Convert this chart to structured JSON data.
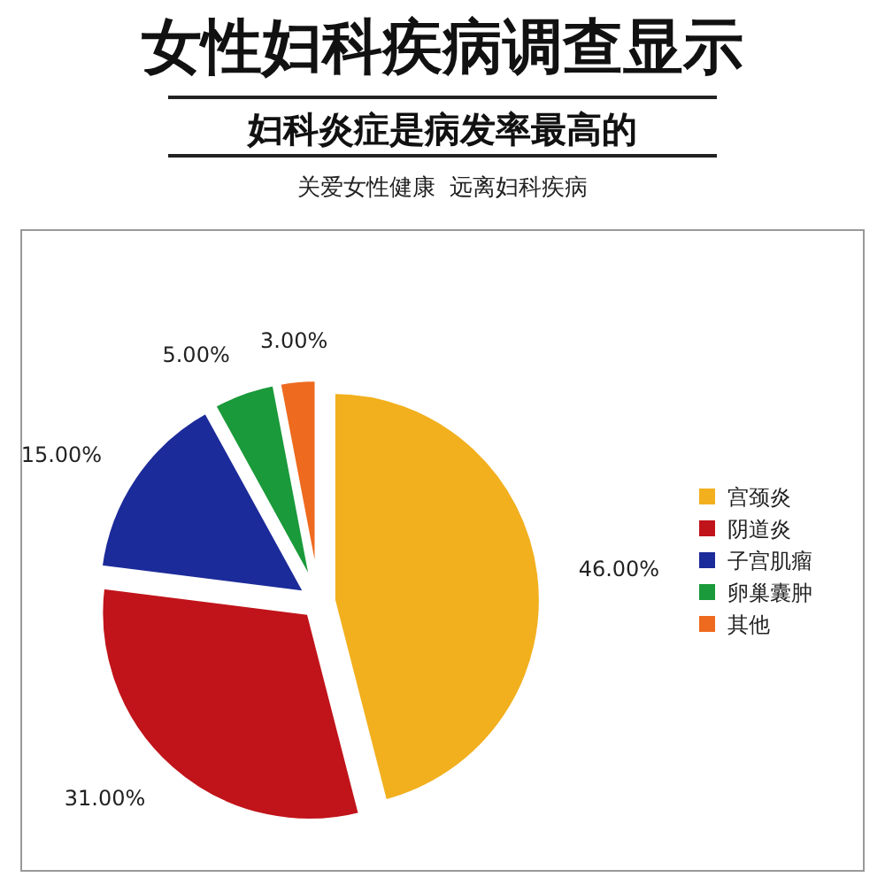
{
  "chart_data": {
    "type": "pie",
    "title": "女性妇科疾病调查显示",
    "subtitle": "妇科炎症是病发率最高的",
    "annotations": [
      "关爱女性健康  远离妇科疾病"
    ],
    "categories": [
      "宫颈炎",
      "阴道炎",
      "子宫肌瘤",
      "卵巢囊肿",
      "其他"
    ],
    "values": [
      46,
      31,
      15,
      5,
      3
    ],
    "value_labels": [
      "46.00%",
      "31.00%",
      "15.00%",
      "5.00%",
      "3.00%"
    ],
    "colors": [
      "#f2b01e",
      "#c0141a",
      "#1c2b9a",
      "#1a9a3a",
      "#ee6a1e"
    ],
    "legend": "right"
  }
}
